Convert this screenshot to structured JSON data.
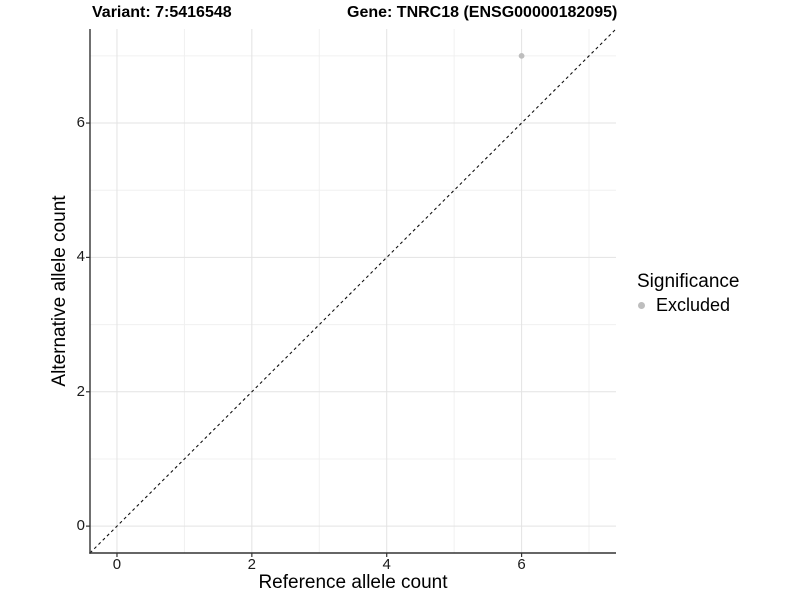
{
  "titles": {
    "variant": "Variant: 7:5416548",
    "gene": "Gene: TNRC18 (ENSG00000182095)"
  },
  "chart_data": {
    "type": "scatter",
    "title": "Variant: 7:5416548  /  Gene: TNRC18 (ENSG00000182095)",
    "xlabel": "Reference allele count",
    "ylabel": "Alternative allele count",
    "xlim": [
      -0.4,
      7.4
    ],
    "ylim": [
      -0.4,
      7.4
    ],
    "x_major_ticks": [
      0,
      2,
      4,
      6
    ],
    "y_major_ticks": [
      0,
      2,
      4,
      6
    ],
    "x_minor_ticks": [
      1,
      3,
      5,
      7
    ],
    "y_minor_ticks": [
      1,
      3,
      5,
      7
    ],
    "x_tick_labels": [
      "0",
      "2",
      "4",
      "6"
    ],
    "y_tick_labels": [
      "0",
      "2",
      "4",
      "6"
    ],
    "grid": true,
    "identity_line": {
      "type": "dashed",
      "slope": 1,
      "intercept": 0
    },
    "series": [
      {
        "name": "Excluded",
        "points": [
          {
            "x": 6,
            "y": 7
          }
        ]
      }
    ],
    "legend": {
      "title": "Significance",
      "position": "right",
      "entries": [
        {
          "label": "Excluded",
          "color": "#bebebe"
        }
      ]
    }
  },
  "colors": {
    "point": "#bebebe",
    "grid_major": "#e3e3e3",
    "grid_minor": "#f0f0f0",
    "axis_line": "#333333",
    "identity_line": "#111111",
    "background": "#ffffff"
  }
}
